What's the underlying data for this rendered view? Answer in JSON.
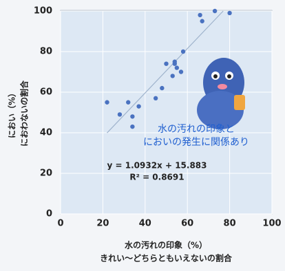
{
  "chart_data": {
    "type": "scatter",
    "xlabel": [
      "水の汚れの印象（%）",
      "きれい～どちらともいえないの割合"
    ],
    "ylabel": [
      "におい（%）",
      "におわないの割合"
    ],
    "annotation": [
      "水の汚れの印象と",
      "においの発生に関係あり"
    ],
    "trendline": {
      "slope": 1.0932,
      "intercept": 15.883,
      "label": "y = 1.0932x + 15.883",
      "color": "#9fb3cc"
    },
    "r2_label": "R² = 0.8691",
    "color": "#4a72c0",
    "x": [
      22,
      28,
      32,
      34,
      34,
      37,
      45,
      48,
      50,
      53,
      54,
      54,
      55,
      57,
      58,
      66,
      67,
      73,
      80
    ],
    "values": [
      55,
      49,
      55,
      48,
      43,
      53,
      57,
      62,
      74,
      68,
      74,
      75,
      72,
      70,
      80,
      98,
      95,
      100,
      99
    ],
    "xlim": [
      0,
      100
    ],
    "ylim": [
      0,
      100
    ],
    "xticks": [
      0,
      20,
      40,
      60,
      80,
      100
    ],
    "yticks": [
      0,
      20,
      40,
      60,
      80,
      100
    ]
  }
}
